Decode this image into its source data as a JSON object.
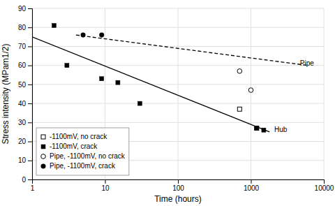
{
  "chart_data": {
    "type": "scatter",
    "xlabel": "Time (hours)",
    "ylabel": "Stress intensity (MPam1/2)",
    "log": "x",
    "xlim": [
      1,
      10000
    ],
    "xticks": [
      1,
      10,
      100,
      1000,
      10000
    ],
    "ylim": [
      0,
      90
    ],
    "yticks": [
      0,
      10,
      20,
      30,
      40,
      50,
      60,
      70,
      80,
      90
    ],
    "grid": true,
    "legend": "lower left",
    "series": [
      {
        "name": "-1100mV, no crack",
        "type": "scatter",
        "marker": "square-open",
        "color": "#000000",
        "x": [
          700,
          1200
        ],
        "values": [
          37,
          27
        ]
      },
      {
        "name": "-1100mV, crack",
        "type": "scatter",
        "marker": "square",
        "color": "#000000",
        "x": [
          2,
          3,
          9,
          15,
          30,
          1200,
          1500
        ],
        "values": [
          81,
          60,
          53,
          51,
          40,
          27,
          26
        ]
      },
      {
        "name": "Pipe, -1100mV, no crack",
        "type": "scatter",
        "marker": "circle-open",
        "color": "#000000",
        "x": [
          700,
          1000
        ],
        "values": [
          57,
          47
        ]
      },
      {
        "name": "Pipe, -1100mV, crack",
        "type": "scatter",
        "marker": "circle",
        "color": "#000000",
        "x": [
          5,
          9
        ],
        "values": [
          76,
          76
        ]
      },
      {
        "type": "line",
        "line_style": "solid",
        "color": "#000000",
        "x": [
          1,
          1800
        ],
        "values": [
          75,
          25
        ]
      },
      {
        "type": "line",
        "line_style": "dashed",
        "color": "#000000",
        "x": [
          4,
          6000
        ],
        "values": [
          76,
          60
        ]
      }
    ],
    "annotations": [
      {
        "text": "Hub",
        "x": 2000,
        "y": 26
      },
      {
        "text": "Pipe",
        "x": 4500,
        "y": 61
      }
    ]
  }
}
